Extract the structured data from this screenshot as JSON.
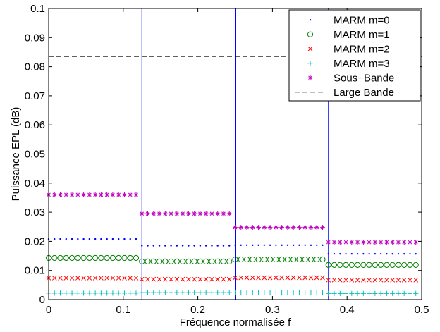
{
  "chart_data": {
    "type": "scatter",
    "title": "",
    "xlabel": "Fréquence normalisée f",
    "ylabel": "Puissance EPL (dB)",
    "xlim": [
      0,
      0.5
    ],
    "ylim": [
      0,
      0.1
    ],
    "xticks": [
      0,
      0.1,
      0.2,
      0.3,
      0.4,
      0.5
    ],
    "yticks": [
      0,
      0.01,
      0.02,
      0.03,
      0.04,
      0.05,
      0.06,
      0.07,
      0.08,
      0.09,
      0.1
    ],
    "xtick_labels": [
      "0",
      "0.1",
      "0.2",
      "0.3",
      "0.4",
      "0.5"
    ],
    "ytick_labels": [
      "0",
      "0.01",
      "0.02",
      "0.03",
      "0.04",
      "0.05",
      "0.06",
      "0.07",
      "0.08",
      "0.09",
      "0.1"
    ],
    "grid": false,
    "legend_position": "top-right",
    "band_edges": [
      0.125,
      0.25,
      0.375
    ],
    "band_edge_colors": [
      "#0000ff",
      "#0000ff",
      "#0000ff"
    ],
    "points_per_band": 16,
    "series": [
      {
        "name": "MARM m=0",
        "marker": "dot",
        "color": "#0000ff",
        "band_values": [
          0.0208,
          0.0185,
          0.0187,
          0.0157
        ]
      },
      {
        "name": "MARM m=1",
        "marker": "circle",
        "color": "#008000",
        "band_values": [
          0.0143,
          0.0131,
          0.0138,
          0.0119
        ]
      },
      {
        "name": "MARM m=2",
        "marker": "x",
        "color": "#ff0000",
        "band_values": [
          0.0074,
          0.007,
          0.0075,
          0.0067
        ]
      },
      {
        "name": "MARM m=3",
        "marker": "plus",
        "color": "#00bfbf",
        "band_values": [
          0.0022,
          0.0024,
          0.0023,
          0.0021
        ]
      },
      {
        "name": "Sous−Bande",
        "marker": "star",
        "color": "#bf00bf",
        "band_values": [
          0.036,
          0.0295,
          0.0248,
          0.0197
        ]
      },
      {
        "name": "Large Bande",
        "marker": "dashed-line",
        "color": "#000000",
        "value": 0.0835
      }
    ]
  }
}
